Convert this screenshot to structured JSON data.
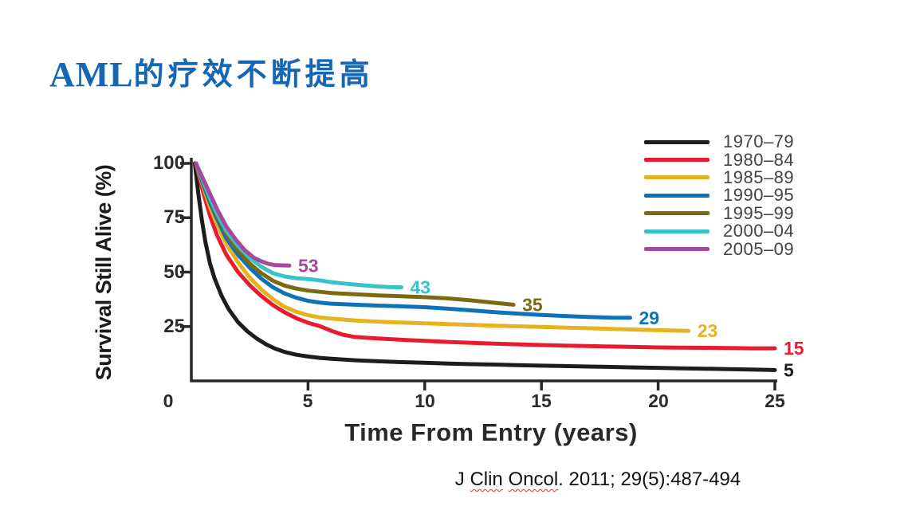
{
  "title": {
    "latin": "AML",
    "chinese": "的疗效不断提高"
  },
  "chart_data": {
    "type": "line",
    "title": "",
    "xlabel": "Time From Entry (years)",
    "ylabel": "Survival Still Alive (%)",
    "xlim": [
      0,
      25
    ],
    "ylim": [
      0,
      100
    ],
    "grid": false,
    "legend_position": "top-right",
    "xtick_labels": [
      "0",
      "5",
      "10",
      "15",
      "20",
      "25"
    ],
    "ytick_labels": [
      "100",
      "75",
      "50",
      "25"
    ],
    "series": [
      {
        "name": "1970–79",
        "color": "#1f1c1d",
        "end_value": 5,
        "end_label": "5",
        "points": [
          [
            0.15,
            100
          ],
          [
            0.3,
            86
          ],
          [
            0.45,
            74
          ],
          [
            0.6,
            64
          ],
          [
            0.8,
            54
          ],
          [
            1,
            47
          ],
          [
            1.3,
            39
          ],
          [
            1.6,
            33
          ],
          [
            2,
            27
          ],
          [
            2.4,
            22.8
          ],
          [
            2.8,
            19.5
          ],
          [
            3.2,
            16.8
          ],
          [
            3.6,
            14.8
          ],
          [
            4,
            13.3
          ],
          [
            4.5,
            12
          ],
          [
            5,
            11.2
          ],
          [
            5.5,
            10.6
          ],
          [
            6,
            10.2
          ],
          [
            7,
            9.5
          ],
          [
            8,
            9
          ],
          [
            9,
            8.6
          ],
          [
            10,
            8.3
          ],
          [
            11,
            8
          ],
          [
            12,
            7.7
          ],
          [
            13,
            7.5
          ],
          [
            14,
            7.2
          ],
          [
            15,
            7
          ],
          [
            16,
            6.8
          ],
          [
            17,
            6.6
          ],
          [
            18,
            6.4
          ],
          [
            19,
            6.2
          ],
          [
            20,
            6
          ],
          [
            21,
            5.8
          ],
          [
            22,
            5.6
          ],
          [
            23,
            5.4
          ],
          [
            24,
            5.2
          ],
          [
            25,
            5
          ]
        ]
      },
      {
        "name": "1980–84",
        "color": "#e81c2e",
        "end_value": 15,
        "end_label": "15",
        "points": [
          [
            0.2,
            100
          ],
          [
            0.5,
            87
          ],
          [
            0.8,
            76
          ],
          [
            1.1,
            67
          ],
          [
            1.5,
            58
          ],
          [
            2,
            50
          ],
          [
            2.5,
            44
          ],
          [
            3,
            39
          ],
          [
            3.5,
            34.8
          ],
          [
            4,
            31.5
          ],
          [
            4.5,
            28.8
          ],
          [
            5,
            26.7
          ],
          [
            5.5,
            25.2
          ],
          [
            6,
            23
          ],
          [
            6.5,
            21.2
          ],
          [
            7,
            20.2
          ],
          [
            7.5,
            19.8
          ],
          [
            8,
            19.5
          ],
          [
            9,
            18.9
          ],
          [
            10,
            18.4
          ],
          [
            11,
            17.9
          ],
          [
            12,
            17.5
          ],
          [
            13,
            17.1
          ],
          [
            14,
            16.8
          ],
          [
            15,
            16.5
          ],
          [
            16,
            16.2
          ],
          [
            17,
            16
          ],
          [
            18,
            15.8
          ],
          [
            19,
            15.6
          ],
          [
            20,
            15.4
          ],
          [
            21,
            15.3
          ],
          [
            22,
            15.2
          ],
          [
            23,
            15.1
          ],
          [
            24,
            15
          ],
          [
            25,
            15
          ]
        ]
      },
      {
        "name": "1985–89",
        "color": "#e4b31f",
        "end_value": 23,
        "end_label": "23",
        "points": [
          [
            0.2,
            100
          ],
          [
            0.5,
            89.5
          ],
          [
            0.8,
            80
          ],
          [
            1.1,
            72
          ],
          [
            1.5,
            63
          ],
          [
            2,
            54.5
          ],
          [
            2.5,
            47.5
          ],
          [
            3,
            42
          ],
          [
            3.5,
            37.5
          ],
          [
            4,
            34
          ],
          [
            4.5,
            31.8
          ],
          [
            5,
            30.2
          ],
          [
            5.5,
            29.2
          ],
          [
            6,
            28.6
          ],
          [
            7,
            27.8
          ],
          [
            8,
            27.2
          ],
          [
            9,
            26.8
          ],
          [
            10,
            26.5
          ],
          [
            11,
            26.1
          ],
          [
            12,
            25.8
          ],
          [
            13,
            25.4
          ],
          [
            14,
            25.1
          ],
          [
            15,
            24.8
          ],
          [
            16,
            24.5
          ],
          [
            17,
            24.2
          ],
          [
            18,
            23.9
          ],
          [
            19,
            23.6
          ],
          [
            20,
            23.3
          ],
          [
            21.3,
            23
          ]
        ]
      },
      {
        "name": "1990–95",
        "color": "#0e72b9",
        "end_value": 29,
        "end_label": "29",
        "points": [
          [
            0.2,
            100
          ],
          [
            0.5,
            90.5
          ],
          [
            0.8,
            82
          ],
          [
            1.1,
            74.5
          ],
          [
            1.5,
            65.5
          ],
          [
            2,
            58
          ],
          [
            2.5,
            52
          ],
          [
            3,
            47
          ],
          [
            3.5,
            43
          ],
          [
            4,
            40.2
          ],
          [
            4.5,
            38.2
          ],
          [
            5,
            36.8
          ],
          [
            5.5,
            36
          ],
          [
            6,
            35.5
          ],
          [
            7,
            35
          ],
          [
            8,
            34.6
          ],
          [
            9,
            34.3
          ],
          [
            10,
            33.9
          ],
          [
            11,
            33.2
          ],
          [
            12,
            32.4
          ],
          [
            13,
            31.6
          ],
          [
            14,
            30.9
          ],
          [
            15,
            30.3
          ],
          [
            16,
            29.8
          ],
          [
            17,
            29.4
          ],
          [
            18,
            29.1
          ],
          [
            18.8,
            29
          ]
        ]
      },
      {
        "name": "1995–99",
        "color": "#7b6a12",
        "end_value": 35,
        "end_label": "35",
        "points": [
          [
            0.2,
            100
          ],
          [
            0.5,
            91.5
          ],
          [
            0.8,
            83.5
          ],
          [
            1.1,
            76
          ],
          [
            1.5,
            67.5
          ],
          [
            2,
            60
          ],
          [
            2.5,
            54
          ],
          [
            3,
            49.5
          ],
          [
            3.5,
            46
          ],
          [
            4,
            43.8
          ],
          [
            4.5,
            42.4
          ],
          [
            5,
            41.5
          ],
          [
            6,
            40.4
          ],
          [
            7,
            39.8
          ],
          [
            8,
            39.3
          ],
          [
            9,
            38.9
          ],
          [
            10,
            38.5
          ],
          [
            11,
            37.9
          ],
          [
            12,
            37
          ],
          [
            13,
            35.9
          ],
          [
            13.8,
            35
          ]
        ]
      },
      {
        "name": "2000–04",
        "color": "#38c2c9",
        "end_value": 43,
        "end_label": "43",
        "points": [
          [
            0.2,
            100
          ],
          [
            0.5,
            92
          ],
          [
            0.8,
            84
          ],
          [
            1.1,
            77
          ],
          [
            1.5,
            69
          ],
          [
            2,
            62
          ],
          [
            2.5,
            56.5
          ],
          [
            3,
            52.5
          ],
          [
            3.5,
            49.5
          ],
          [
            4,
            48
          ],
          [
            4.5,
            47.2
          ],
          [
            5,
            46.8
          ],
          [
            5.5,
            46.2
          ],
          [
            6,
            45.4
          ],
          [
            6.5,
            44.8
          ],
          [
            7,
            44.3
          ],
          [
            7.5,
            43.8
          ],
          [
            8,
            43.4
          ],
          [
            8.5,
            43.1
          ],
          [
            9,
            43
          ]
        ]
      },
      {
        "name": "2005–09",
        "color": "#a7489f",
        "end_value": 53,
        "end_label": "53",
        "points": [
          [
            0.2,
            100
          ],
          [
            0.5,
            93
          ],
          [
            0.8,
            86
          ],
          [
            1.1,
            79
          ],
          [
            1.5,
            71
          ],
          [
            1.9,
            65
          ],
          [
            2.3,
            60
          ],
          [
            2.7,
            56.5
          ],
          [
            3,
            55
          ],
          [
            3.3,
            53.8
          ],
          [
            3.6,
            53.2
          ],
          [
            4.2,
            53
          ]
        ]
      }
    ]
  },
  "citation": {
    "prefix": "J ",
    "word1": "Clin",
    "space": " ",
    "word2": "Oncol",
    "suffix": ". 2011; 29(5):487-494"
  }
}
